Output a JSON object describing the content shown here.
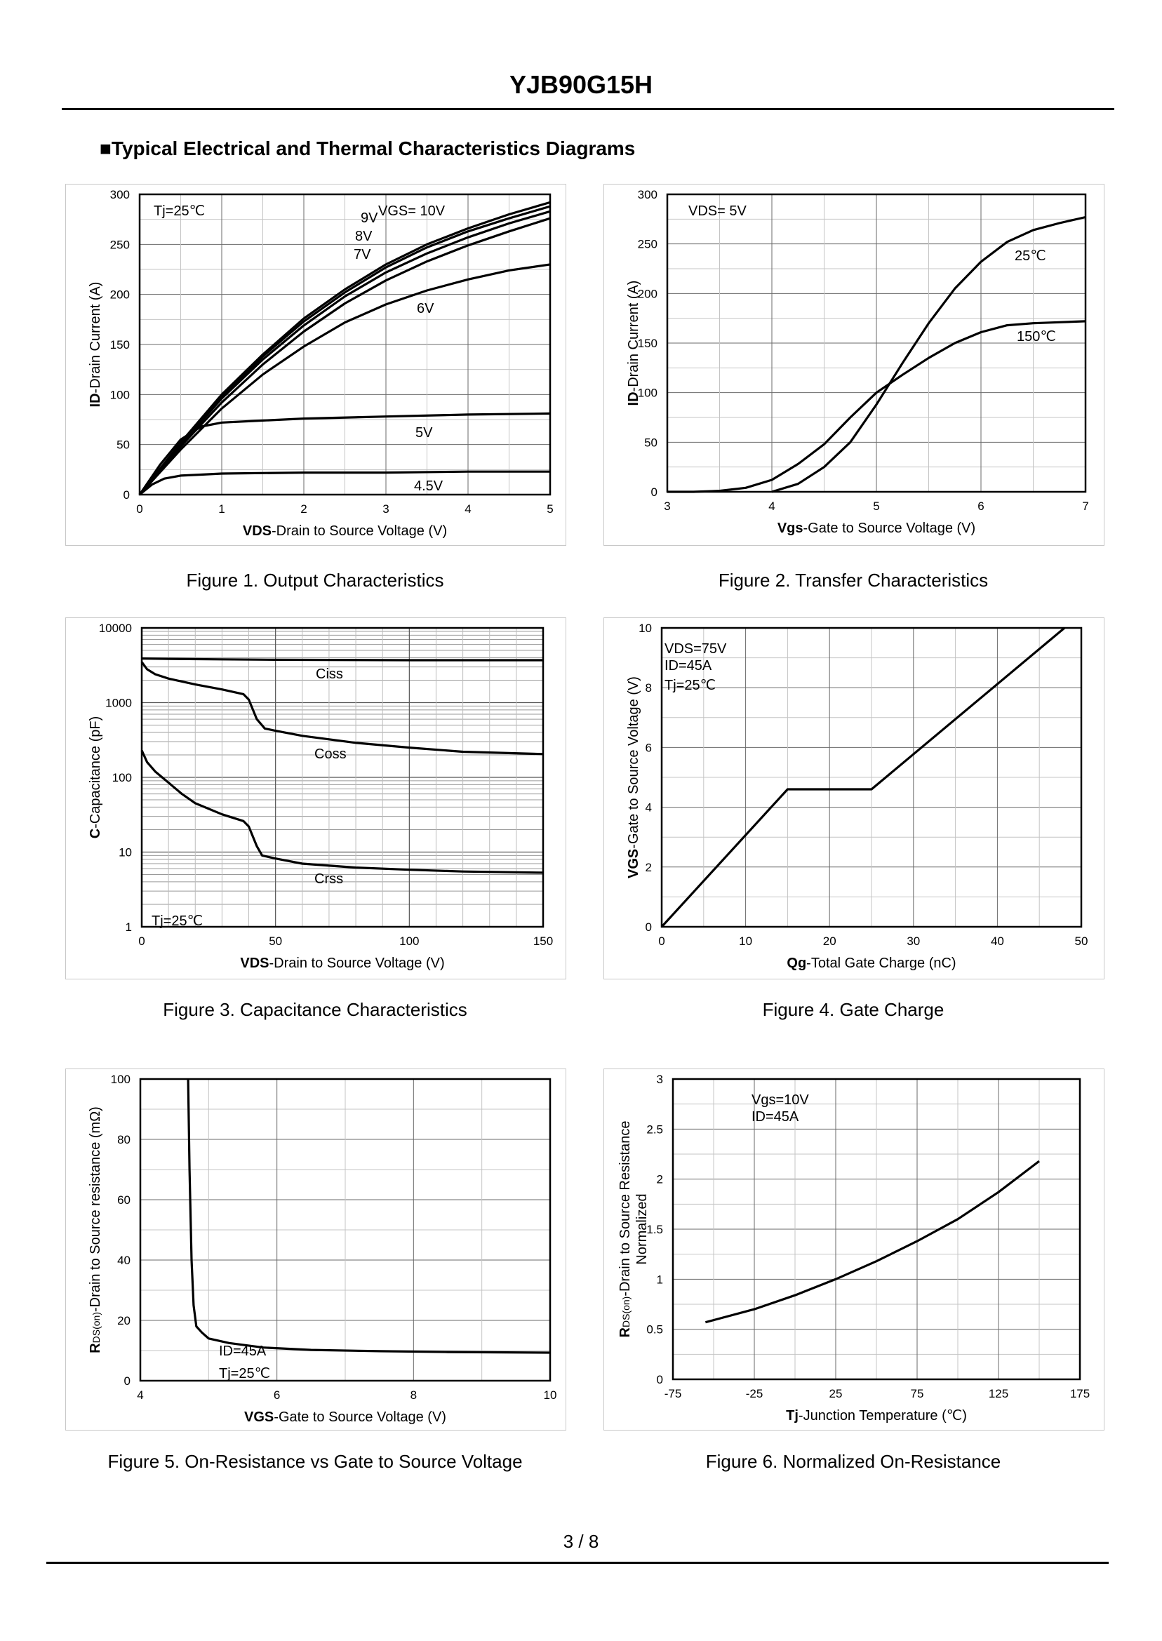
{
  "header": {
    "title": "YJB90G15H"
  },
  "section_title": "■Typical Electrical and Thermal Characteristics Diagrams",
  "footer": {
    "page": "3 / 8"
  },
  "figures": [
    {
      "caption": "Figure 1.  Output Characteristics"
    },
    {
      "caption": "Figure 2.  Transfer Characteristics"
    },
    {
      "caption": "Figure 3.  Capacitance Characteristics"
    },
    {
      "caption": "Figure 4.  Gate Charge"
    },
    {
      "caption": "Figure 5.  On-Resistance vs Gate to Source Voltage"
    },
    {
      "caption": "Figure 6.  Normalized On-Resistance"
    }
  ],
  "chart_data": [
    {
      "type": "line",
      "title": "Output Characteristics",
      "xlabel_bold": "VDS",
      "xlabel_rest": "-Drain to Source Voltage (V)",
      "ylabel_bold": "ID",
      "ylabel_rest": "-Drain Current (A)",
      "xlim": [
        0,
        5
      ],
      "ylim": [
        0,
        300
      ],
      "xticks": [
        0,
        1,
        2,
        3,
        4,
        5
      ],
      "yticks": [
        0,
        50,
        100,
        150,
        200,
        250,
        300
      ],
      "annotations": [
        "Tj=25℃",
        "VGS= 10V"
      ],
      "series": [
        {
          "name": "10V",
          "x": [
            0,
            0.5,
            1,
            1.5,
            2,
            2.5,
            3,
            3.5,
            4,
            4.5,
            5
          ],
          "y": [
            0,
            52,
            100,
            140,
            176,
            205,
            230,
            250,
            266,
            280,
            292
          ]
        },
        {
          "name": "9V",
          "x": [
            0,
            0.5,
            1,
            1.5,
            2,
            2.5,
            3,
            3.5,
            4,
            4.5,
            5
          ],
          "y": [
            0,
            51,
            98,
            138,
            173,
            202,
            227,
            247,
            263,
            276,
            288
          ]
        },
        {
          "name": "8V",
          "x": [
            0,
            0.5,
            1,
            1.5,
            2,
            2.5,
            3,
            3.5,
            4,
            4.5,
            5
          ],
          "y": [
            0,
            50,
            96,
            135,
            169,
            198,
            222,
            241,
            257,
            271,
            283
          ]
        },
        {
          "name": "7V",
          "x": [
            0,
            0.5,
            1,
            1.5,
            2,
            2.5,
            3,
            3.5,
            4,
            4.5,
            5
          ],
          "y": [
            0,
            48,
            92,
            130,
            163,
            191,
            214,
            233,
            249,
            263,
            276
          ]
        },
        {
          "name": "6V",
          "x": [
            0,
            0.5,
            1,
            1.5,
            2,
            2.5,
            3,
            3.5,
            4,
            4.5,
            5
          ],
          "y": [
            0,
            45,
            86,
            120,
            148,
            172,
            190,
            204,
            215,
            224,
            230
          ]
        },
        {
          "name": "5V",
          "x": [
            0,
            0.25,
            0.5,
            0.75,
            1,
            1.5,
            2,
            3,
            4,
            5
          ],
          "y": [
            0,
            30,
            55,
            68,
            72,
            74,
            76,
            78,
            80,
            81
          ]
        },
        {
          "name": "4.5V",
          "x": [
            0,
            0.15,
            0.3,
            0.5,
            0.75,
            1,
            2,
            3,
            4,
            5
          ],
          "y": [
            0,
            10,
            16,
            19,
            20,
            21,
            22,
            22,
            23,
            23
          ]
        }
      ]
    },
    {
      "type": "line",
      "title": "Transfer Characteristics",
      "xlabel_bold": "Vgs",
      "xlabel_rest": "-Gate to Source Voltage (V)",
      "ylabel_bold": "ID",
      "ylabel_rest": "-Drain Current (A)",
      "xlim": [
        3,
        7
      ],
      "ylim": [
        0,
        300
      ],
      "xticks": [
        3,
        4,
        5,
        6,
        7
      ],
      "yticks": [
        0,
        50,
        100,
        150,
        200,
        250,
        300
      ],
      "annotations": [
        "VDS= 5V"
      ],
      "series": [
        {
          "name": "25℃",
          "x": [
            4.0,
            4.25,
            4.5,
            4.75,
            5.0,
            5.25,
            5.5,
            5.75,
            6.0,
            6.25,
            6.5,
            6.75,
            7.0
          ],
          "y": [
            0,
            8,
            25,
            50,
            88,
            130,
            170,
            205,
            232,
            252,
            264,
            271,
            277
          ]
        },
        {
          "name": "150℃",
          "x": [
            3.0,
            3.25,
            3.5,
            3.75,
            4.0,
            4.25,
            4.5,
            4.75,
            5.0,
            5.25,
            5.5,
            5.75,
            6.0,
            6.25,
            6.5,
            6.75,
            7.0
          ],
          "y": [
            0,
            0,
            1,
            4,
            12,
            28,
            48,
            75,
            100,
            118,
            135,
            150,
            161,
            168,
            170,
            171,
            172
          ]
        }
      ]
    },
    {
      "type": "line",
      "title": "Capacitance Characteristics",
      "xlabel_bold": "VDS",
      "xlabel_rest": "-Drain to Source Voltage (V)",
      "ylabel_bold": "C",
      "ylabel_rest": "-Capacitance (pF)",
      "xlim": [
        0,
        150
      ],
      "ylim": [
        1,
        10000
      ],
      "yscale": "log",
      "xticks": [
        0,
        50,
        100,
        150
      ],
      "yticks": [
        1,
        10,
        100,
        1000,
        10000
      ],
      "annotations": [
        "Tj=25℃"
      ],
      "series": [
        {
          "name": "Ciss",
          "x": [
            0,
            10,
            30,
            50,
            100,
            150
          ],
          "y": [
            3900,
            3850,
            3800,
            3750,
            3700,
            3700
          ]
        },
        {
          "name": "Coss",
          "x": [
            0,
            2,
            5,
            10,
            20,
            30,
            38,
            40,
            43,
            46,
            50,
            60,
            80,
            100,
            120,
            150
          ],
          "y": [
            3500,
            2800,
            2400,
            2100,
            1750,
            1500,
            1300,
            1100,
            600,
            450,
            420,
            360,
            290,
            250,
            220,
            205
          ]
        },
        {
          "name": "Crss",
          "x": [
            0,
            2,
            5,
            10,
            15,
            20,
            30,
            38,
            40,
            43,
            45,
            50,
            60,
            80,
            100,
            120,
            150
          ],
          "y": [
            230,
            160,
            120,
            85,
            60,
            45,
            32,
            26,
            22,
            12,
            9,
            8.2,
            7,
            6.2,
            5.8,
            5.5,
            5.3
          ]
        }
      ]
    },
    {
      "type": "line",
      "title": "Gate Charge",
      "xlabel_bold": "Qg",
      "xlabel_rest": "-Total Gate Charge (nC)",
      "ylabel_bold": "VGS",
      "ylabel_rest": "-Gate to Source Voltage (V)",
      "xlim": [
        0,
        50
      ],
      "ylim": [
        0,
        10
      ],
      "xticks": [
        0,
        10,
        20,
        30,
        40,
        50
      ],
      "yticks": [
        0,
        2,
        4,
        6,
        8,
        10
      ],
      "annotations": [
        "VDS=75V",
        "ID=45A",
        "Tj=25℃"
      ],
      "series": [
        {
          "name": "VGS",
          "x": [
            0,
            15,
            25,
            48
          ],
          "y": [
            0,
            4.6,
            4.6,
            10
          ]
        }
      ]
    },
    {
      "type": "line",
      "title": "On-Resistance vs Gate to Source Voltage",
      "xlabel_bold": "VGS",
      "xlabel_rest": "-Gate to Source Voltage (V)",
      "ylabel_bold": "R",
      "ylabel_sub": "DS(on)",
      "ylabel_rest": "-Drain to Source resistance (mΩ)",
      "xlim": [
        4,
        10
      ],
      "ylim": [
        0,
        100
      ],
      "xticks": [
        4,
        6,
        8,
        10
      ],
      "yticks": [
        0,
        20,
        40,
        60,
        80,
        100
      ],
      "annotations": [
        "ID=45A",
        "Tj=25℃"
      ],
      "series": [
        {
          "name": "RDS(on)",
          "x": [
            4.7,
            4.72,
            4.75,
            4.78,
            4.82,
            4.9,
            5.0,
            5.3,
            5.8,
            6.5,
            7.5,
            8.5,
            10.0
          ],
          "y": [
            100,
            70,
            40,
            25,
            18,
            16,
            14,
            12.5,
            11,
            10.2,
            9.8,
            9.5,
            9.3
          ]
        }
      ]
    },
    {
      "type": "line",
      "title": "Normalized On-Resistance",
      "xlabel_bold": "Tj",
      "xlabel_rest": "-Junction  Temperature (℃)",
      "ylabel_bold": "R",
      "ylabel_sub": "DS(on)",
      "ylabel_rest": "-Drain to Source Resistance",
      "ylabel2": "Normalized",
      "xlim": [
        -75,
        175
      ],
      "ylim": [
        0,
        3
      ],
      "xticks": [
        -75,
        -25,
        25,
        75,
        125,
        175
      ],
      "yticks": [
        0,
        0.5,
        1,
        1.5,
        2,
        2.5,
        3
      ],
      "annotations": [
        "Vgs=10V",
        "ID=45A"
      ],
      "series": [
        {
          "name": "Normalized",
          "x": [
            -55,
            -25,
            0,
            25,
            50,
            75,
            100,
            125,
            150
          ],
          "y": [
            0.57,
            0.7,
            0.84,
            1.0,
            1.18,
            1.38,
            1.6,
            1.87,
            2.18
          ]
        }
      ]
    }
  ]
}
